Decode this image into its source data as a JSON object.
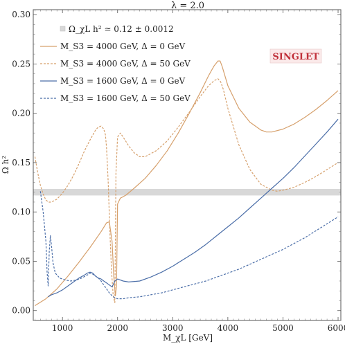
{
  "chart_data": {
    "type": "line",
    "title": "λ = 2.0",
    "xlabel": "M_χL [GeV]",
    "ylabel": "Ω h²",
    "xlim": [
      470,
      6050
    ],
    "ylim": [
      -0.01,
      0.305
    ],
    "xticks": [
      1000,
      2000,
      3000,
      4000,
      5000,
      6000
    ],
    "yticks": [
      0.0,
      0.05,
      0.1,
      0.15,
      0.2,
      0.25,
      0.3
    ],
    "xtick_labels": [
      "1000",
      "2000",
      "3000",
      "4000",
      "5000",
      "6000"
    ],
    "ytick_labels": [
      "0.00",
      "0.05",
      "0.10",
      "0.15",
      "0.20",
      "0.25",
      "0.30"
    ],
    "band": {
      "label": "Ω_χL h² ≃ 0.12 ± 0.0012",
      "center": 0.12,
      "halfwidth": 0.0012,
      "color": "#d8d8d8"
    },
    "badge": "SINGLET",
    "legend_position": "top-left",
    "grid": false,
    "series": [
      {
        "name": "M_S3 = 4000 GeV,   Δ = 0 GeV",
        "color": "#d6a06c",
        "dash": "solid",
        "x": [
          500,
          700,
          900,
          1100,
          1300,
          1500,
          1700,
          1800,
          1850,
          1900,
          1930,
          1960,
          1980,
          2000,
          2050,
          2150,
          2300,
          2500,
          2700,
          2900,
          3100,
          3300,
          3500,
          3650,
          3750,
          3820,
          3860,
          3900,
          4000,
          4200,
          4400,
          4600,
          4700,
          4800,
          5000,
          5200,
          5400,
          5600,
          5800,
          6000
        ],
        "y": [
          0.005,
          0.012,
          0.022,
          0.035,
          0.049,
          0.064,
          0.08,
          0.089,
          0.09,
          0.07,
          0.035,
          0.015,
          0.025,
          0.108,
          0.114,
          0.117,
          0.124,
          0.134,
          0.147,
          0.162,
          0.18,
          0.2,
          0.221,
          0.238,
          0.248,
          0.253,
          0.253,
          0.247,
          0.228,
          0.205,
          0.191,
          0.183,
          0.181,
          0.181,
          0.184,
          0.189,
          0.196,
          0.204,
          0.213,
          0.223
        ]
      },
      {
        "name": "M_S3 = 4000 GeV,   Δ = 50 GeV",
        "color": "#d6a06c",
        "dash": "3,2",
        "x": [
          500,
          550,
          600,
          650,
          700,
          750,
          800,
          900,
          1000,
          1100,
          1200,
          1300,
          1400,
          1500,
          1600,
          1650,
          1700,
          1750,
          1780,
          1800,
          1830,
          1860,
          1890,
          1920,
          1950,
          1970,
          2000,
          2050,
          2100,
          2200,
          2300,
          2400,
          2500,
          2700,
          2900,
          3100,
          3300,
          3500,
          3650,
          3750,
          3820,
          3870,
          3920,
          4000,
          4200,
          4400,
          4600,
          4800,
          4900,
          5000,
          5200,
          5400,
          5600,
          5800,
          6000
        ],
        "y": [
          0.156,
          0.14,
          0.127,
          0.118,
          0.112,
          0.11,
          0.11,
          0.113,
          0.119,
          0.127,
          0.137,
          0.149,
          0.162,
          0.173,
          0.183,
          0.186,
          0.187,
          0.184,
          0.178,
          0.165,
          0.13,
          0.08,
          0.04,
          0.015,
          0.008,
          0.14,
          0.176,
          0.18,
          0.176,
          0.167,
          0.16,
          0.156,
          0.156,
          0.162,
          0.172,
          0.186,
          0.201,
          0.217,
          0.228,
          0.233,
          0.235,
          0.232,
          0.224,
          0.205,
          0.168,
          0.143,
          0.128,
          0.122,
          0.121,
          0.122,
          0.125,
          0.13,
          0.136,
          0.143,
          0.15
        ]
      },
      {
        "name": "M_S3 = 1600 GeV,   Δ = 0 GeV",
        "color": "#4b6ea8",
        "dash": "solid",
        "x": [
          740,
          800,
          900,
          1000,
          1100,
          1200,
          1300,
          1400,
          1450,
          1500,
          1550,
          1600,
          1650,
          1700,
          1750,
          1800,
          1850,
          1900,
          1950,
          2000,
          2100,
          2200,
          2400,
          2600,
          2800,
          3000,
          3200,
          3400,
          3600,
          3800,
          4000,
          4200,
          4400,
          4600,
          4800,
          5000,
          5200,
          5400,
          5600,
          5800,
          6000
        ],
        "y": [
          0.014,
          0.016,
          0.018,
          0.021,
          0.025,
          0.029,
          0.033,
          0.036,
          0.038,
          0.039,
          0.038,
          0.035,
          0.033,
          0.032,
          0.03,
          0.028,
          0.026,
          0.024,
          0.03,
          0.032,
          0.03,
          0.029,
          0.03,
          0.034,
          0.039,
          0.045,
          0.052,
          0.059,
          0.067,
          0.076,
          0.085,
          0.094,
          0.104,
          0.114,
          0.124,
          0.134,
          0.145,
          0.157,
          0.169,
          0.181,
          0.194
        ]
      },
      {
        "name": "M_S3 = 1600 GeV,   Δ = 50 GeV",
        "color": "#4b6ea8",
        "dash": "3,2",
        "x": [
          600,
          650,
          700,
          720,
          740,
          760,
          780,
          800,
          830,
          870,
          950,
          1050,
          1150,
          1250,
          1350,
          1450,
          1500,
          1550,
          1600,
          1650,
          1700,
          1750,
          1800,
          1850,
          1900,
          1950,
          2000,
          2100,
          2200,
          2400,
          2600,
          2800,
          3000,
          3200,
          3400,
          3600,
          3800,
          4000,
          4200,
          4400,
          4600,
          4800,
          5000,
          5200,
          5400,
          5600,
          5800,
          6000
        ],
        "y": [
          0.121,
          0.1,
          0.07,
          0.04,
          0.025,
          0.06,
          0.076,
          0.066,
          0.048,
          0.038,
          0.033,
          0.031,
          0.03,
          0.031,
          0.033,
          0.036,
          0.038,
          0.037,
          0.035,
          0.033,
          0.03,
          0.026,
          0.022,
          0.018,
          0.015,
          0.013,
          0.012,
          0.012,
          0.013,
          0.014,
          0.016,
          0.018,
          0.021,
          0.024,
          0.027,
          0.03,
          0.034,
          0.038,
          0.042,
          0.047,
          0.052,
          0.057,
          0.062,
          0.068,
          0.074,
          0.081,
          0.088,
          0.095
        ]
      }
    ]
  }
}
